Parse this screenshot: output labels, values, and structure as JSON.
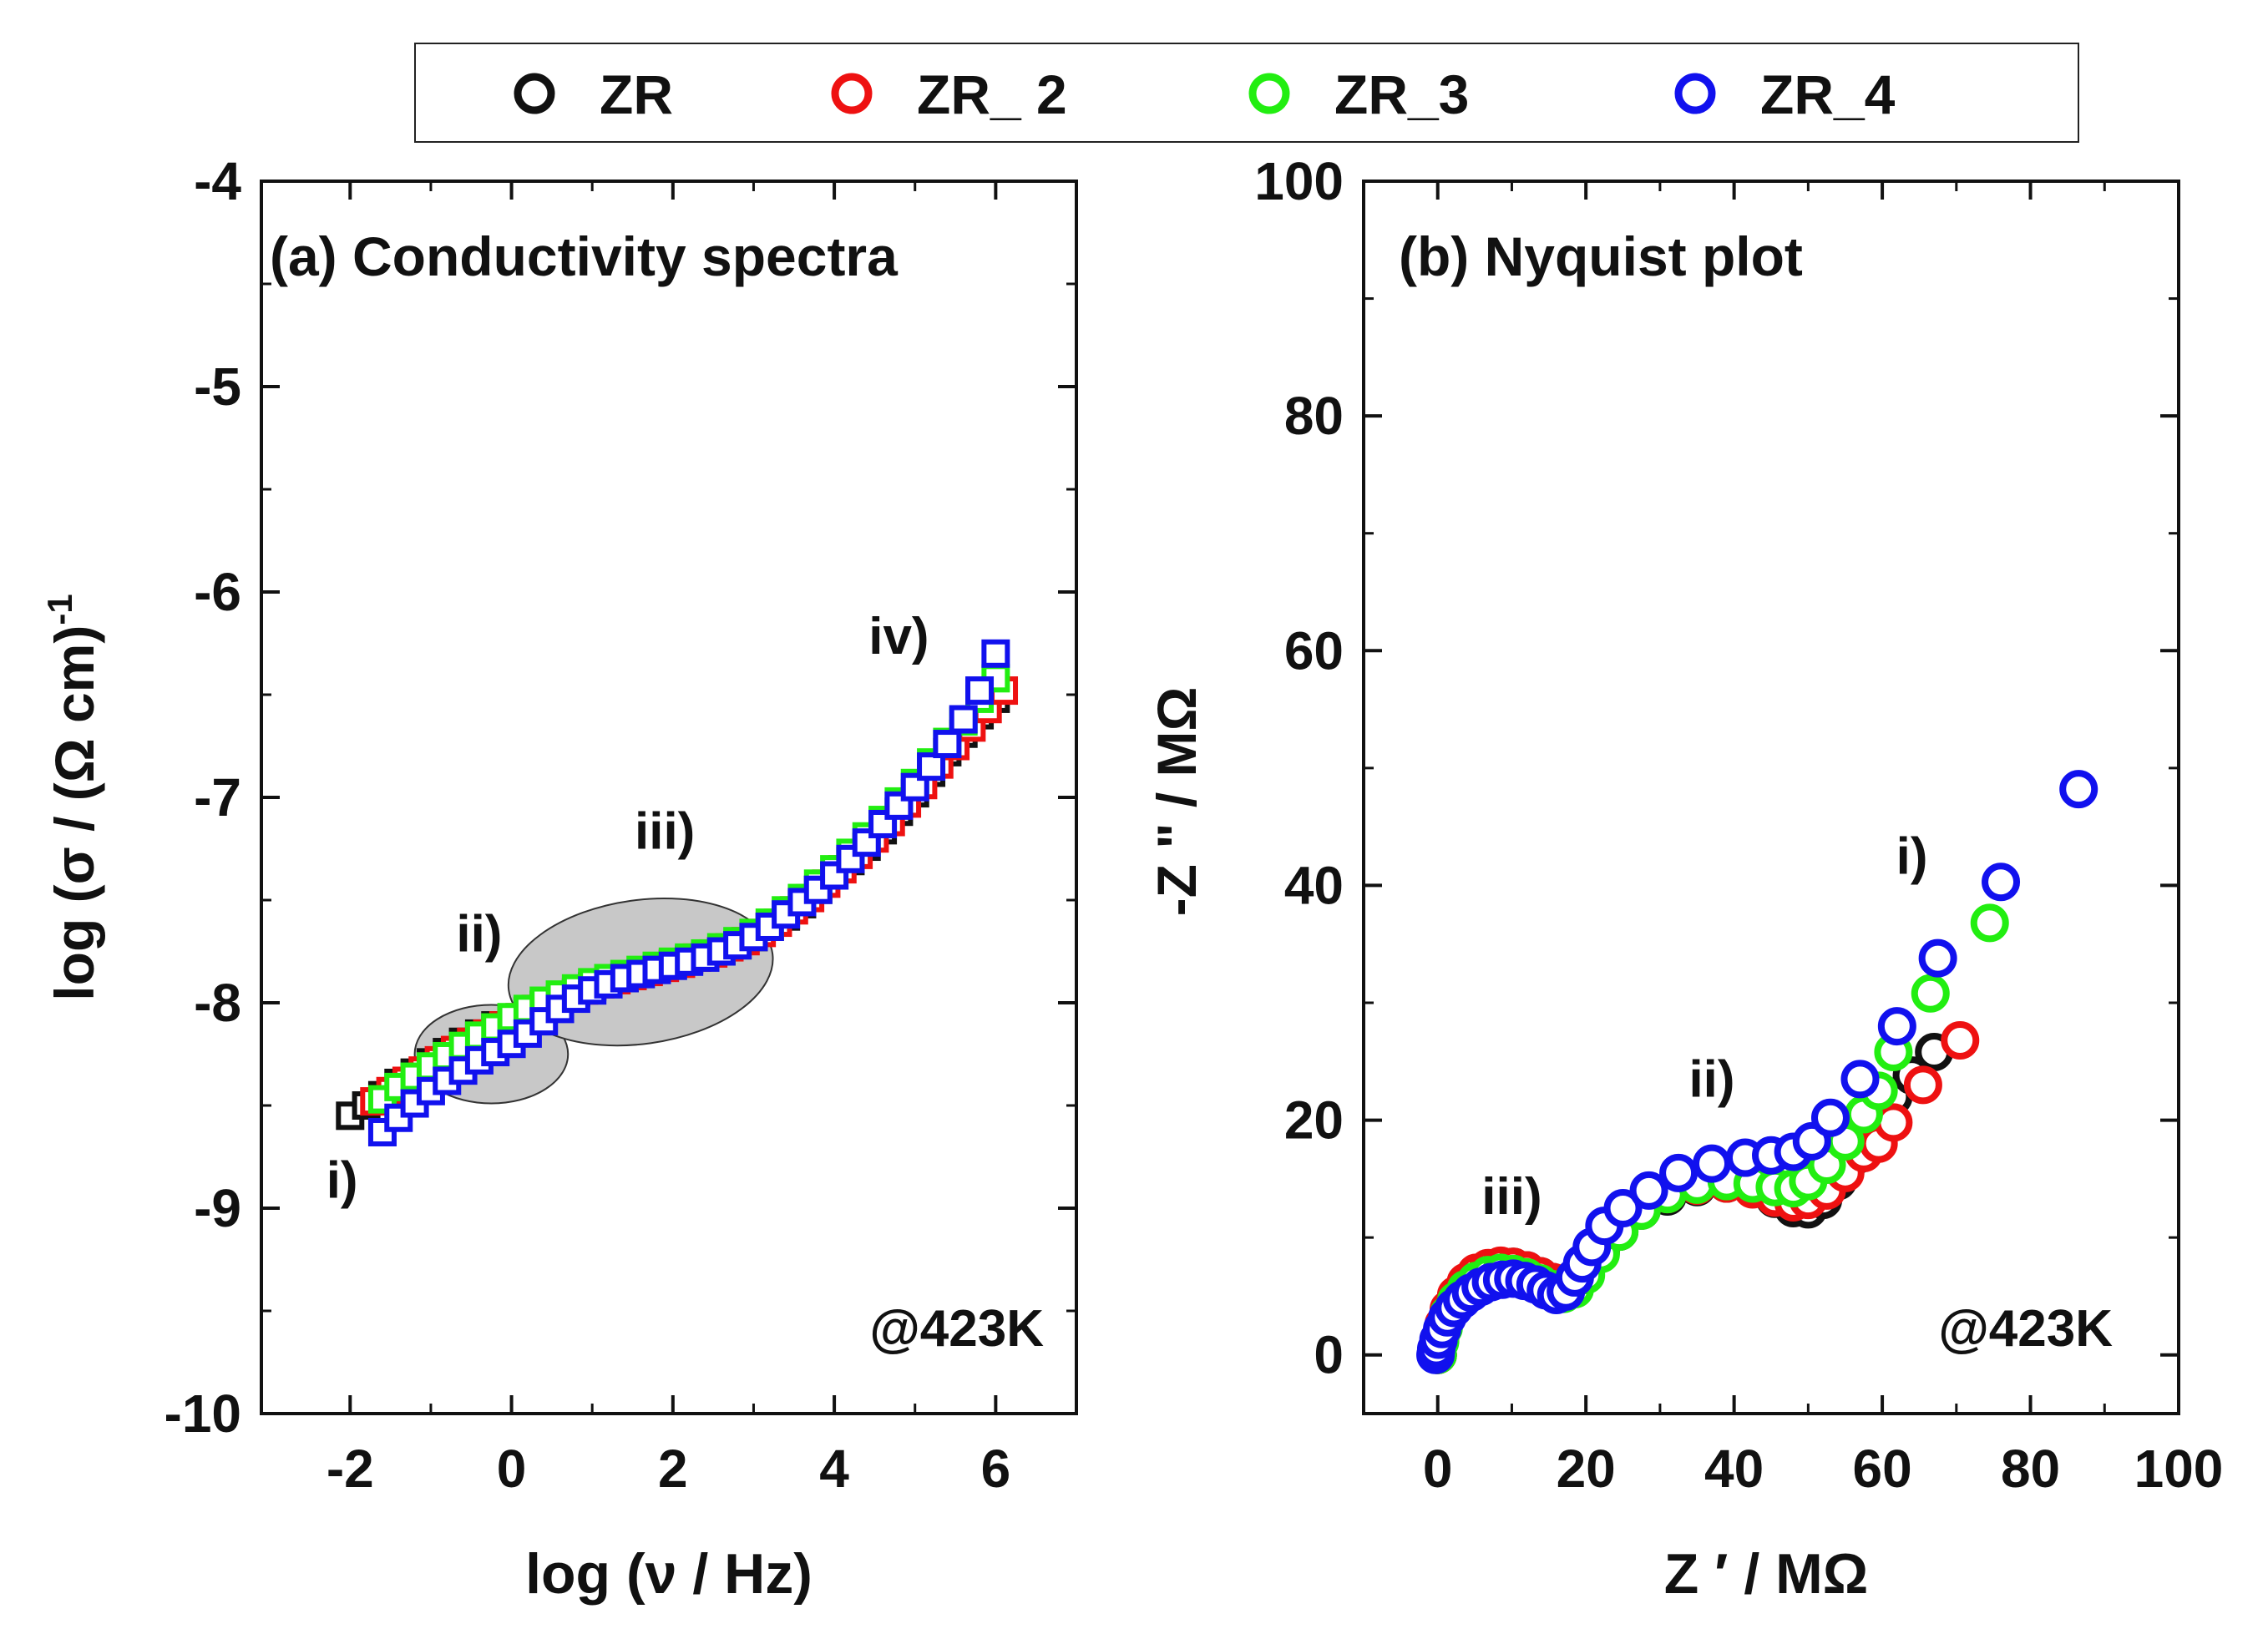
{
  "legend": {
    "entries": [
      {
        "name": "ZR",
        "color": "#111111"
      },
      {
        "name": "ZR_ 2",
        "color": "#ee1111"
      },
      {
        "name": "ZR_3",
        "color": "#22ee11"
      },
      {
        "name": "ZR_4",
        "color": "#1111ee"
      }
    ],
    "placement": "top-center"
  },
  "chart_data": [
    {
      "type": "scatter",
      "title": "(a) Conductivity spectra",
      "xlabel": "log (ν / Hz)",
      "ylabel": "log (σ / (Ω cm)-1)",
      "ylabel_main": "log (σ / (Ω cm)",
      "ylabel_sup": "-1",
      "xlim": [
        -3.1,
        7.0
      ],
      "ylim": [
        -10,
        -4
      ],
      "xticks": [
        -2,
        0,
        2,
        4,
        6
      ],
      "yticks": [
        -10,
        -9,
        -8,
        -7,
        -6,
        -5,
        -4
      ],
      "xtick_labels": [
        "-2",
        "0",
        "2",
        "4",
        "6"
      ],
      "ytick_labels": [
        "-10",
        "-9",
        "-8",
        "-7",
        "-6",
        "-5",
        "-4"
      ],
      "marker": "square",
      "annotation": "@423K",
      "region_labels": [
        {
          "text": "i)",
          "x": -2.1,
          "y": -8.95
        },
        {
          "text": "ii)",
          "x": -0.4,
          "y": -7.75
        },
        {
          "text": "iii)",
          "x": 1.9,
          "y": -7.25
        },
        {
          "text": "iv)",
          "x": 4.8,
          "y": -6.3
        }
      ],
      "shaded_regions": [
        {
          "cx": -0.25,
          "cy": -8.25,
          "rx": 0.95,
          "ry": 0.24
        },
        {
          "cx": 1.6,
          "cy": -7.85,
          "rx": 1.65,
          "ry": 0.35,
          "rotate": -8
        }
      ],
      "series": [
        {
          "name": "ZR",
          "x": [
            -2.0,
            -1.8,
            -1.6,
            -1.4,
            -1.2,
            -1.0,
            -0.8,
            -0.6,
            -0.4,
            -0.2,
            0.0,
            0.2,
            0.4,
            0.6,
            0.8,
            1.0,
            1.2,
            1.4,
            1.6,
            1.8,
            2.0,
            2.2,
            2.4,
            2.6,
            2.8,
            3.0,
            3.2,
            3.4,
            3.6,
            3.8,
            4.0,
            4.2,
            4.4,
            4.6,
            4.8,
            5.0,
            5.2,
            5.4,
            5.6,
            5.8,
            6.0
          ],
          "y": [
            -8.55,
            -8.5,
            -8.45,
            -8.39,
            -8.34,
            -8.29,
            -8.24,
            -8.19,
            -8.15,
            -8.11,
            -8.08,
            -8.04,
            -8.01,
            -7.98,
            -7.95,
            -7.92,
            -7.9,
            -7.88,
            -7.86,
            -7.83,
            -7.81,
            -7.79,
            -7.77,
            -7.75,
            -7.72,
            -7.68,
            -7.63,
            -7.58,
            -7.52,
            -7.45,
            -7.38,
            -7.31,
            -7.24,
            -7.16,
            -7.07,
            -6.98,
            -6.88,
            -6.78,
            -6.69,
            -6.6,
            -6.52
          ]
        },
        {
          "name": "ZR_ 2",
          "x": [
            -1.7,
            -1.5,
            -1.3,
            -1.1,
            -0.9,
            -0.7,
            -0.5,
            -0.3,
            -0.1,
            0.1,
            0.3,
            0.5,
            0.7,
            0.9,
            1.1,
            1.3,
            1.5,
            1.7,
            1.9,
            2.1,
            2.3,
            2.5,
            2.7,
            2.9,
            3.1,
            3.3,
            3.5,
            3.7,
            3.9,
            4.1,
            4.3,
            4.5,
            4.7,
            4.9,
            5.1,
            5.3,
            5.5,
            5.7,
            5.9,
            6.1
          ],
          "y": [
            -8.48,
            -8.43,
            -8.38,
            -8.33,
            -8.28,
            -8.23,
            -8.19,
            -8.15,
            -8.11,
            -8.07,
            -8.03,
            -8.0,
            -7.97,
            -7.94,
            -7.91,
            -7.89,
            -7.87,
            -7.85,
            -7.83,
            -7.81,
            -7.78,
            -7.76,
            -7.73,
            -7.7,
            -7.66,
            -7.61,
            -7.55,
            -7.49,
            -7.42,
            -7.35,
            -7.28,
            -7.2,
            -7.12,
            -7.03,
            -6.94,
            -6.84,
            -6.75,
            -6.66,
            -6.57,
            -6.48
          ]
        },
        {
          "name": "ZR_3",
          "x": [
            -1.6,
            -1.4,
            -1.2,
            -1.0,
            -0.8,
            -0.6,
            -0.4,
            -0.2,
            0.0,
            0.2,
            0.4,
            0.6,
            0.8,
            1.0,
            1.2,
            1.4,
            1.6,
            1.8,
            2.0,
            2.2,
            2.4,
            2.6,
            2.8,
            3.0,
            3.2,
            3.4,
            3.6,
            3.8,
            4.0,
            4.2,
            4.4,
            4.6,
            4.8,
            5.0,
            5.2,
            5.4,
            5.6,
            5.8,
            6.0
          ],
          "y": [
            -8.47,
            -8.41,
            -8.36,
            -8.31,
            -8.26,
            -8.21,
            -8.16,
            -8.12,
            -8.07,
            -8.03,
            -7.99,
            -7.96,
            -7.93,
            -7.9,
            -7.88,
            -7.86,
            -7.84,
            -7.82,
            -7.8,
            -7.78,
            -7.76,
            -7.73,
            -7.7,
            -7.66,
            -7.61,
            -7.55,
            -7.49,
            -7.42,
            -7.35,
            -7.27,
            -7.19,
            -7.11,
            -7.02,
            -6.93,
            -6.83,
            -6.73,
            -6.63,
            -6.52,
            -6.42
          ]
        },
        {
          "name": "ZR_4",
          "x": [
            -1.6,
            -1.4,
            -1.2,
            -1.0,
            -0.8,
            -0.6,
            -0.4,
            -0.2,
            0.0,
            0.2,
            0.4,
            0.6,
            0.8,
            1.0,
            1.2,
            1.4,
            1.6,
            1.8,
            2.0,
            2.2,
            2.4,
            2.6,
            2.8,
            3.0,
            3.2,
            3.4,
            3.6,
            3.8,
            4.0,
            4.2,
            4.4,
            4.6,
            4.8,
            5.0,
            5.2,
            5.4,
            5.6,
            5.8,
            6.0
          ],
          "y": [
            -8.63,
            -8.56,
            -8.49,
            -8.43,
            -8.38,
            -8.33,
            -8.28,
            -8.24,
            -8.2,
            -8.15,
            -8.09,
            -8.03,
            -7.98,
            -7.94,
            -7.91,
            -7.88,
            -7.86,
            -7.84,
            -7.82,
            -7.8,
            -7.78,
            -7.75,
            -7.72,
            -7.68,
            -7.63,
            -7.57,
            -7.51,
            -7.45,
            -7.38,
            -7.3,
            -7.22,
            -7.13,
            -7.04,
            -6.95,
            -6.85,
            -6.74,
            -6.62,
            -6.48,
            -6.3
          ]
        }
      ]
    },
    {
      "type": "scatter",
      "title": "(b) Nyquist plot",
      "xlabel": "Z ′ / MΩ",
      "ylabel": "-Z \" / MΩ",
      "xlim": [
        -10,
        100
      ],
      "ylim": [
        -5,
        100
      ],
      "xticks": [
        0,
        20,
        40,
        60,
        80,
        100
      ],
      "yticks": [
        0,
        20,
        40,
        60,
        80,
        100
      ],
      "xtick_labels": [
        "0",
        "20",
        "40",
        "60",
        "80",
        "100"
      ],
      "ytick_labels": [
        "0",
        "20",
        "40",
        "60",
        "80",
        "100"
      ],
      "marker": "circle",
      "annotation": "@423K",
      "region_labels": [
        {
          "text": "i)",
          "x": 64,
          "y": 41
        },
        {
          "text": "ii)",
          "x": 37,
          "y": 22
        },
        {
          "text": "iii)",
          "x": 10,
          "y": 12
        }
      ],
      "series": [
        {
          "name": "ZR",
          "x": [
            0,
            0.3,
            0.8,
            1.5,
            2.5,
            3.8,
            5.2,
            6.8,
            8.5,
            10.2,
            12,
            13.8,
            15.5,
            17,
            18.5,
            20,
            22,
            24.5,
            27.5,
            31,
            35,
            39,
            42.5,
            45.5,
            48,
            50,
            52,
            54,
            56.5,
            59,
            61.5,
            64,
            67
          ],
          "y": [
            0,
            1.2,
            2.5,
            3.8,
            5.0,
            6.0,
            6.8,
            7.3,
            7.5,
            7.5,
            7.2,
            6.7,
            6.2,
            6.0,
            6.3,
            7.2,
            8.8,
            10.5,
            12.3,
            13.5,
            14.3,
            14.6,
            14.2,
            13.3,
            12.5,
            12.4,
            13.2,
            14.8,
            17.0,
            19.5,
            22.0,
            23.8,
            25.8
          ]
        },
        {
          "name": "ZR_ 2",
          "x": [
            0,
            0.3,
            0.8,
            1.5,
            2.5,
            3.8,
            5.2,
            6.8,
            8.5,
            10.2,
            12,
            13.8,
            15.5,
            17,
            18.5,
            20,
            22,
            24.5,
            27.5,
            31,
            35,
            39,
            42.5,
            45.5,
            48,
            50,
            52.5,
            55,
            57.5,
            59.5,
            61.5,
            65.5,
            70.5
          ],
          "y": [
            0,
            1.3,
            2.6,
            3.9,
            5.1,
            6.2,
            7.0,
            7.4,
            7.6,
            7.5,
            7.2,
            6.7,
            6.2,
            6.0,
            6.3,
            7.3,
            9.0,
            10.8,
            12.5,
            13.7,
            14.4,
            14.6,
            14.1,
            13.4,
            13.0,
            13.2,
            14.0,
            15.5,
            17.2,
            18.0,
            19.8,
            23.0,
            26.8
          ]
        },
        {
          "name": "ZR_3",
          "x": [
            0,
            0.3,
            0.8,
            1.5,
            2.5,
            3.8,
            5.2,
            6.8,
            8.5,
            10.2,
            12,
            13.8,
            15.5,
            17,
            18.5,
            20,
            22,
            24.5,
            27.5,
            31,
            35,
            39,
            42.5,
            45.5,
            48,
            50,
            52.5,
            55,
            57.5,
            59.5,
            61.5,
            66.5,
            74.5
          ],
          "y": [
            0,
            1.1,
            2.3,
            3.5,
            4.6,
            5.6,
            6.3,
            6.8,
            7.0,
            6.9,
            6.6,
            6.1,
            5.6,
            5.2,
            5.6,
            6.8,
            8.6,
            10.5,
            12.3,
            13.7,
            14.5,
            14.8,
            14.6,
            14.3,
            14.2,
            14.8,
            16.2,
            18.2,
            20.5,
            22.5,
            25.8,
            30.8,
            36.8
          ]
        },
        {
          "name": "ZR_4",
          "x": [
            -0.3,
            -0.2,
            0.1,
            0.6,
            1.3,
            2.2,
            3.3,
            4.5,
            5.8,
            7.2,
            8.7,
            10.2,
            11.7,
            13.2,
            14.6,
            16,
            17.3,
            18.5,
            19.5,
            20.8,
            22.5,
            25,
            28.5,
            32.5,
            37,
            41.5,
            45,
            48,
            50.5,
            53,
            57,
            62,
            67.5,
            76,
            86.5
          ],
          "y": [
            0,
            0.5,
            1.3,
            2.2,
            3.2,
            4.0,
            4.7,
            5.3,
            5.8,
            6.2,
            6.4,
            6.5,
            6.3,
            6.0,
            5.5,
            5.1,
            5.4,
            6.6,
            7.8,
            9.2,
            11.0,
            12.5,
            14.0,
            15.5,
            16.3,
            16.8,
            17.0,
            17.3,
            18.2,
            20.2,
            23.5,
            28.0,
            33.8,
            40.3,
            48.2
          ]
        }
      ]
    }
  ]
}
